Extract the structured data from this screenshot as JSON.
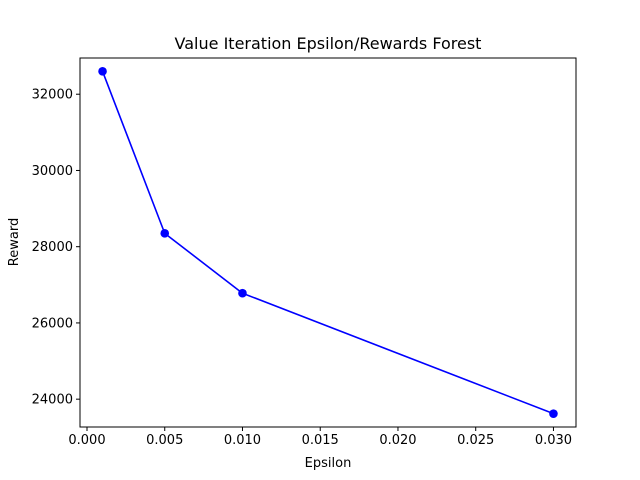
{
  "chart_data": {
    "type": "line",
    "title": "Value Iteration Epsilon/Rewards Forest",
    "xlabel": "Epsilon",
    "ylabel": "Reward",
    "x": [
      0.001,
      0.005,
      0.01,
      0.03
    ],
    "series": [
      {
        "values": [
          32600,
          28350,
          26780,
          23620
        ],
        "color": "#0000ff",
        "marker": "circle"
      }
    ],
    "xlim": [
      -0.00045,
      0.03145
    ],
    "ylim": [
      23270,
      32950
    ],
    "xticks": [
      0.0,
      0.005,
      0.01,
      0.015,
      0.02,
      0.025,
      0.03
    ],
    "xtick_labels": [
      "0.000",
      "0.005",
      "0.010",
      "0.015",
      "0.020",
      "0.025",
      "0.030"
    ],
    "yticks": [
      24000,
      26000,
      28000,
      30000,
      32000
    ],
    "ytick_labels": [
      "24000",
      "26000",
      "28000",
      "30000",
      "32000"
    ],
    "grid": false,
    "legend": "none"
  }
}
